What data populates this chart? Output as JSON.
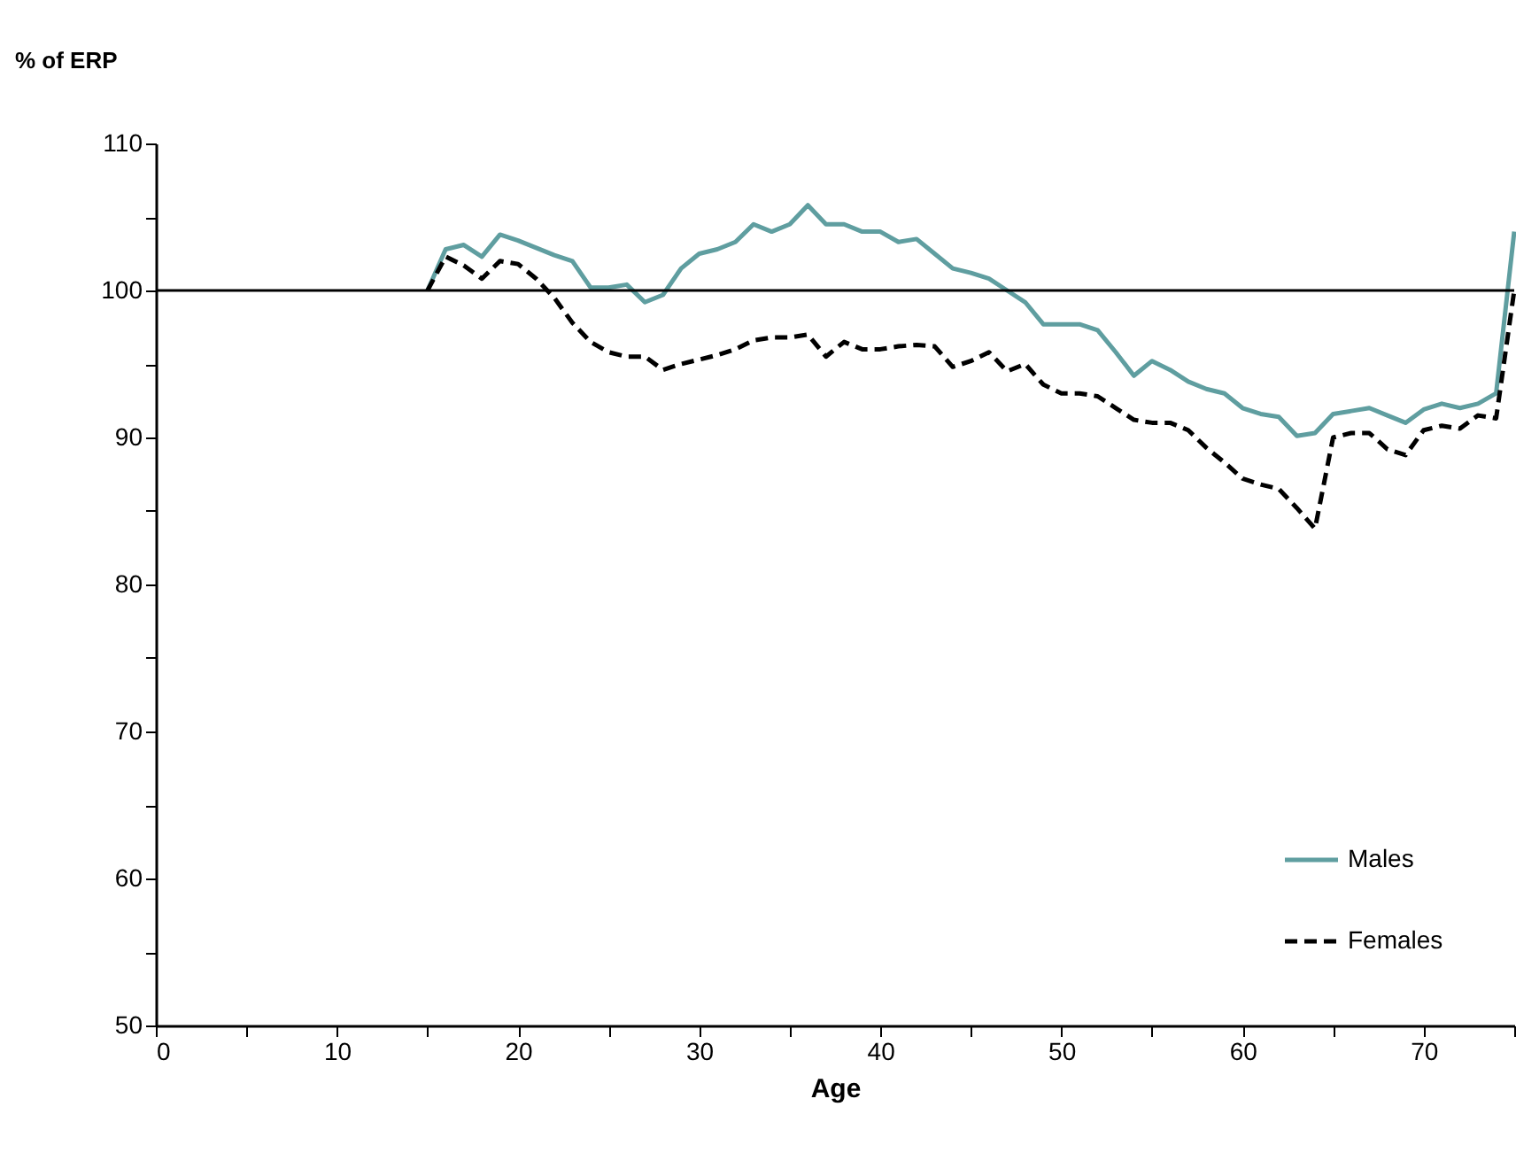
{
  "chart_data": {
    "type": "line",
    "ylabel": "% of ERP",
    "xlabel": "Age",
    "xlim": [
      0,
      75
    ],
    "ylim": [
      50,
      110
    ],
    "xticks": [
      0,
      {
        "value": 5,
        "label": null
      },
      10,
      {
        "value": 15,
        "label": null
      },
      20,
      {
        "value": 25,
        "label": null
      },
      30,
      {
        "value": 35,
        "label": null
      },
      40,
      {
        "value": 45,
        "label": null
      },
      50,
      {
        "value": 55,
        "label": null
      },
      60,
      {
        "value": 65,
        "label": null
      },
      70,
      {
        "value": 75,
        "label": null
      }
    ],
    "yticks": [
      50,
      {
        "value": 55,
        "label": null
      },
      60,
      {
        "value": 65,
        "label": null
      },
      70,
      {
        "value": 75,
        "label": null
      },
      80,
      {
        "value": 85,
        "label": null
      },
      90,
      {
        "value": 95,
        "label": null
      },
      100,
      {
        "value": 105,
        "label": null
      },
      110
    ],
    "grid": false,
    "legend": "bottom right",
    "marker": "none",
    "ref_lines": [
      {
        "axis": "y",
        "value": 100,
        "color": "#000000",
        "line_style": "solid"
      }
    ],
    "x": [
      15,
      16,
      17,
      18,
      19,
      20,
      21,
      22,
      23,
      24,
      25,
      26,
      27,
      28,
      29,
      30,
      31,
      32,
      33,
      34,
      35,
      36,
      37,
      38,
      39,
      40,
      41,
      42,
      43,
      44,
      45,
      46,
      47,
      48,
      49,
      50,
      51,
      52,
      53,
      54,
      55,
      56,
      57,
      58,
      59,
      60,
      61,
      62,
      63,
      64,
      65,
      66,
      67,
      68,
      69,
      70,
      71,
      72,
      73,
      74,
      75
    ],
    "series": [
      {
        "name": "Males",
        "color": "#5f9ea0",
        "line_style": "solid",
        "values": [
          100,
          102.8,
          103.1,
          102.3,
          103.8,
          103.4,
          102.9,
          102.4,
          102.0,
          100.2,
          100.2,
          100.4,
          99.2,
          99.7,
          101.5,
          102.5,
          102.8,
          103.3,
          104.5,
          104.0,
          104.5,
          105.8,
          104.5,
          104.5,
          104.0,
          104.0,
          103.3,
          103.5,
          102.5,
          101.5,
          101.2,
          100.8,
          100.0,
          99.2,
          97.7,
          97.7,
          97.7,
          97.3,
          95.8,
          94.2,
          95.2,
          94.6,
          93.8,
          93.3,
          93.0,
          92.0,
          91.6,
          91.4,
          90.1,
          90.3,
          91.6,
          91.8,
          92.0,
          91.5,
          91.0,
          91.9,
          92.3,
          92.0,
          92.3,
          93.0,
          104
        ]
      },
      {
        "name": "Females",
        "color": "#000000",
        "line_style": "dashed",
        "values": [
          100,
          102.3,
          101.7,
          100.8,
          102.0,
          101.8,
          100.8,
          99.5,
          97.8,
          96.5,
          95.8,
          95.5,
          95.5,
          94.6,
          95.0,
          95.3,
          95.6,
          96.0,
          96.6,
          96.8,
          96.8,
          97.0,
          95.5,
          96.5,
          96.0,
          96.0,
          96.2,
          96.3,
          96.2,
          94.8,
          95.2,
          95.8,
          94.5,
          95.0,
          93.6,
          93.0,
          93.0,
          92.8,
          92.0,
          91.2,
          91.0,
          91.0,
          90.5,
          89.3,
          88.3,
          87.2,
          86.8,
          86.5,
          85.2,
          83.8,
          90.0,
          90.3,
          90.3,
          89.2,
          88.8,
          90.5,
          90.8,
          90.6,
          91.5,
          91.3,
          100
        ]
      }
    ]
  }
}
